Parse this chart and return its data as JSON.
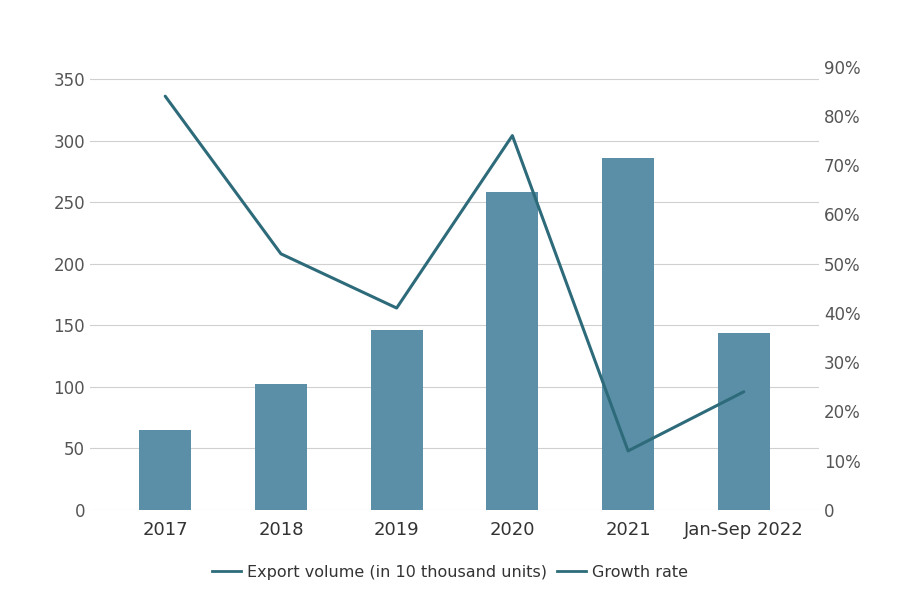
{
  "categories": [
    "2017",
    "2018",
    "2019",
    "2020",
    "2021",
    "Jan-Sep 2022"
  ],
  "bar_values": [
    65,
    102,
    146,
    258,
    286,
    144
  ],
  "line_values_pct": [
    84,
    52,
    41,
    76,
    12,
    24
  ],
  "bar_color": "#5b8fa8",
  "line_color": "#2e6b7a",
  "ylim_left": [
    0,
    380
  ],
  "ylim_right": [
    0,
    95
  ],
  "yticks_left": [
    0,
    50,
    100,
    150,
    200,
    250,
    300,
    350
  ],
  "yticks_right_vals": [
    0,
    10,
    20,
    30,
    40,
    50,
    60,
    70,
    80,
    90
  ],
  "yticks_right_labels": [
    "0",
    "10%",
    "20%",
    "30%",
    "40%",
    "50%",
    "60%",
    "70%",
    "80%",
    "90%"
  ],
  "legend_label_bar": "Export volume (in 10 thousand units)",
  "legend_label_line": "Growth rate",
  "background_color": "#ffffff",
  "grid_color": "#d0d0d0",
  "tick_label_color": "#555555",
  "bar_width": 0.45,
  "line_width": 2.2,
  "xlim": [
    -0.65,
    5.65
  ]
}
